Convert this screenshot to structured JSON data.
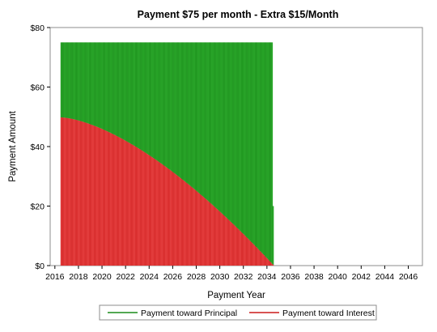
{
  "chart_data": {
    "type": "bar",
    "stacked": true,
    "title": "Payment $75 per month - Extra $15/Month",
    "xlabel": "Payment Year",
    "ylabel": "Payment Amount",
    "x_ticks": [
      "2016",
      "2018",
      "2020",
      "2022",
      "2024",
      "2026",
      "2028",
      "2030",
      "2032",
      "2034",
      "2036",
      "2038",
      "2040",
      "2042",
      "2044",
      "2046"
    ],
    "y_ticks": [
      "$0",
      "$20",
      "$40",
      "$60",
      "$80"
    ],
    "xlim": [
      2015.6,
      2047.2
    ],
    "ylim": [
      0,
      80
    ],
    "grid": false,
    "legend_position": "bottom",
    "monthly_payment": 75,
    "payments": {
      "start": "2016-07",
      "end": "2034-07",
      "frequency": "monthly",
      "interest_first": 49.8,
      "interest_last": 0.3,
      "last_payment_total": 20
    },
    "series": [
      {
        "name": "Payment toward Principal",
        "color": "#1a8c1a",
        "fill": "#2fb02f"
      },
      {
        "name": "Payment toward Interest",
        "color": "#cc1a1a",
        "fill": "#f05050"
      }
    ]
  }
}
